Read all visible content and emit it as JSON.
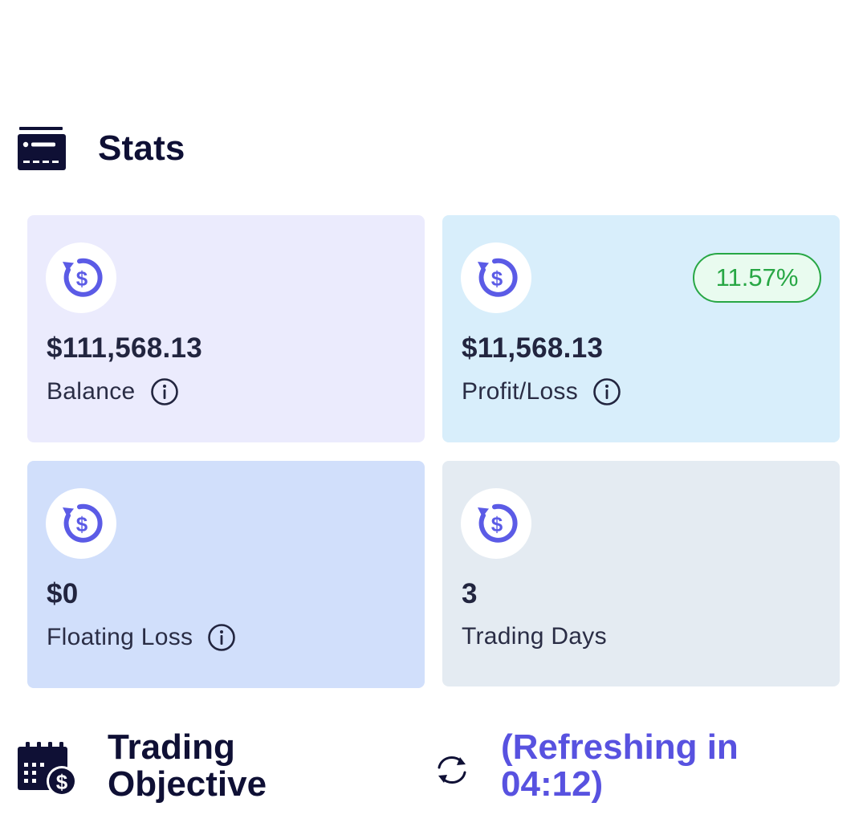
{
  "stats": {
    "title": "Stats",
    "icon": "stats-card-icon",
    "accent_color": "#5b5be6"
  },
  "cards": [
    {
      "key": "balance",
      "value": "$111,568.13",
      "label": "Balance",
      "icon": "dollar-refresh-icon",
      "info_icon": "info-icon",
      "background": "#ebebfd"
    },
    {
      "key": "profit",
      "value": "$11,568.13",
      "label": "Profit/Loss",
      "icon": "dollar-refresh-icon",
      "info_icon": "info-icon",
      "badge": "11.57%",
      "badge_color": "#28a745",
      "background": "#d8eefb"
    },
    {
      "key": "floating",
      "value": "$0",
      "label": "Floating Loss",
      "icon": "dollar-refresh-icon",
      "info_icon": "info-icon",
      "background": "#d1dffb"
    },
    {
      "key": "days",
      "value": "3",
      "label": "Trading Days",
      "icon": "dollar-refresh-icon",
      "background": "#e4ebf2"
    }
  ],
  "objective": {
    "title": "Trading Objective",
    "icon": "calendar-dollar-icon",
    "refresh_icon": "refresh-icon",
    "refresh_text": "(Refreshing in 04:12)",
    "refresh_color": "#5852e0"
  }
}
